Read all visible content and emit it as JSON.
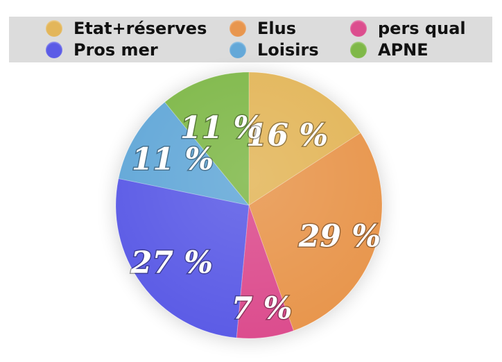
{
  "chart_data": {
    "type": "pie",
    "categories": [
      "Etat+réserves",
      "Elus",
      "pers qual",
      "Pros mer",
      "Loisirs",
      "APNE"
    ],
    "values": [
      16,
      29,
      7,
      27,
      11,
      11
    ],
    "slice_order": [
      "Etat+réserves",
      "Elus",
      "pers qual",
      "Pros mer",
      "Loisirs",
      "APNE"
    ],
    "labels": [
      "16 %",
      "29 %",
      "7 %",
      "27 %",
      "11 %",
      "11 %"
    ],
    "colors": [
      "#e3b65a",
      "#e8964e",
      "#dc4e8e",
      "#5b5be6",
      "#64a8d8",
      "#7fb848"
    ],
    "legend_placement": "top",
    "legend_background": "#dcdcdc",
    "title": "",
    "xlabel": "",
    "ylabel": ""
  }
}
